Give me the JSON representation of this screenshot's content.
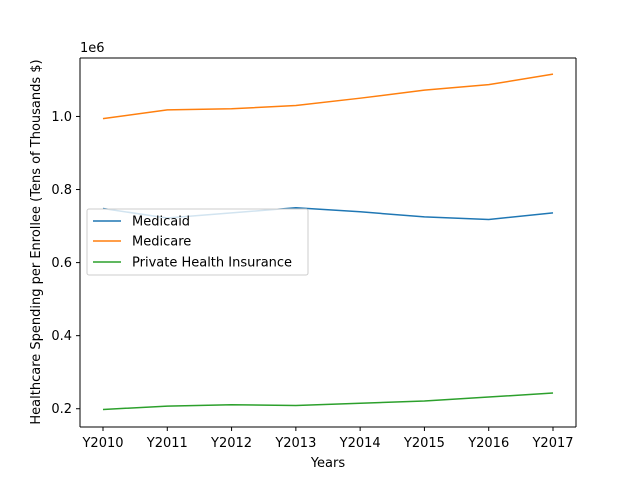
{
  "chart_data": {
    "type": "line",
    "title": "",
    "xlabel": "Years",
    "ylabel": "Healthcare Spending per Enrollee (Tens of Thousands $)",
    "offset_text": "1e6",
    "categories": [
      "Y2010",
      "Y2011",
      "Y2012",
      "Y2013",
      "Y2014",
      "Y2015",
      "Y2016",
      "Y2017"
    ],
    "ylim": [
      150000,
      1160000
    ],
    "yticks": [
      200000,
      400000,
      600000,
      800000,
      1000000
    ],
    "ytick_labels": [
      "0.2",
      "0.4",
      "0.6",
      "0.8",
      "1.0"
    ],
    "grid": false,
    "legend_position": "center-left",
    "series": [
      {
        "name": "Medicaid",
        "color": "#1f77b4",
        "values": [
          748000,
          722000,
          736000,
          750000,
          739000,
          725000,
          718000,
          736000
        ]
      },
      {
        "name": "Medicare",
        "color": "#ff7f0e",
        "values": [
          994000,
          1018000,
          1021000,
          1030000,
          1050000,
          1072000,
          1087000,
          1116000
        ]
      },
      {
        "name": "Private Health Insurance",
        "color": "#2ca02c",
        "values": [
          198000,
          207000,
          211000,
          209000,
          215000,
          221000,
          232000,
          243000
        ]
      }
    ]
  }
}
